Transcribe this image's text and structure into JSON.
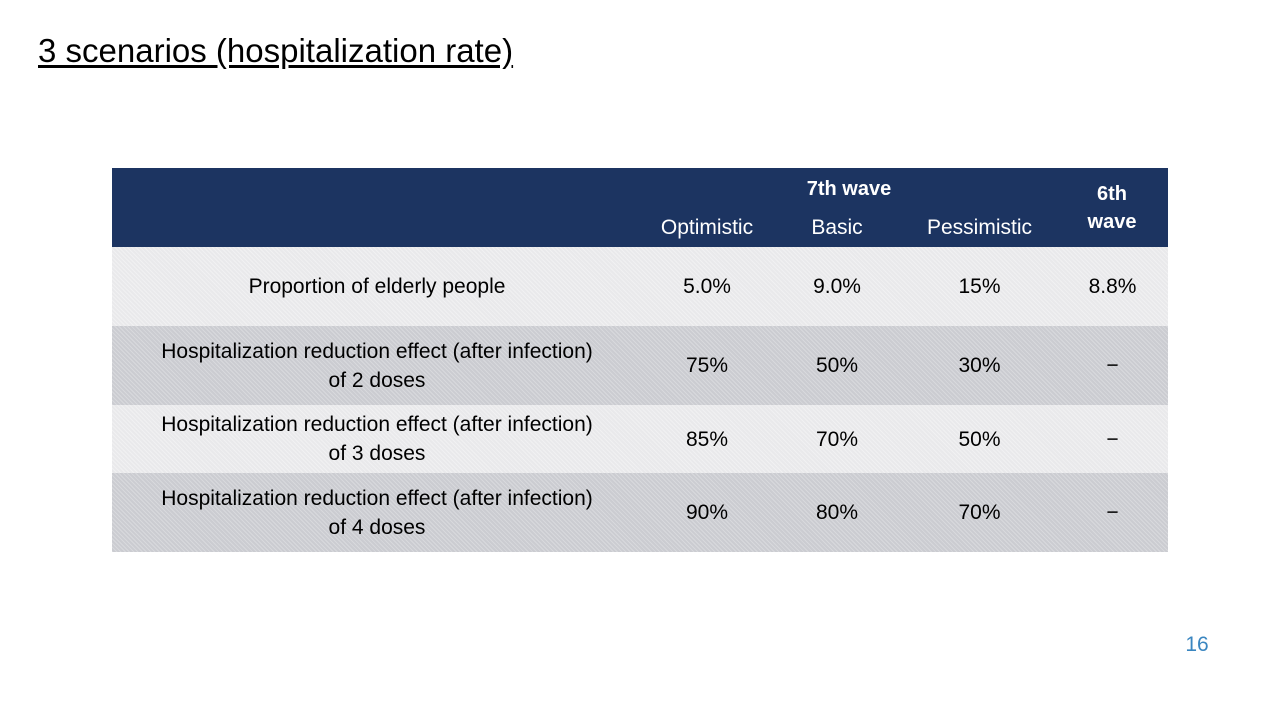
{
  "slide": {
    "title": "3 scenarios (hospitalization rate)",
    "page_number": "16"
  },
  "table": {
    "header": {
      "group_label": "7th wave",
      "scenarios": [
        "Optimistic",
        "Basic",
        "Pessimistic"
      ],
      "sixth_wave": "6th\nwave"
    },
    "rows": [
      {
        "label": "Proportion of elderly people",
        "values": [
          "5.0%",
          "9.0%",
          "15%",
          "8.8%"
        ]
      },
      {
        "label": "Hospitalization reduction effect (after infection)\nof 2 doses",
        "values": [
          "75%",
          "50%",
          "30%",
          "−"
        ]
      },
      {
        "label": "Hospitalization reduction effect (after infection)\nof 3 doses",
        "values": [
          "85%",
          "70%",
          "50%",
          "−"
        ]
      },
      {
        "label": "Hospitalization reduction effect (after infection)\nof 4 doses",
        "values": [
          "90%",
          "80%",
          "70%",
          "−"
        ]
      }
    ]
  },
  "colors": {
    "header_bg": "#1c3461",
    "row_light": "#e9e9eb",
    "row_dark": "#cbccd1",
    "page_number": "#3a86c0"
  }
}
